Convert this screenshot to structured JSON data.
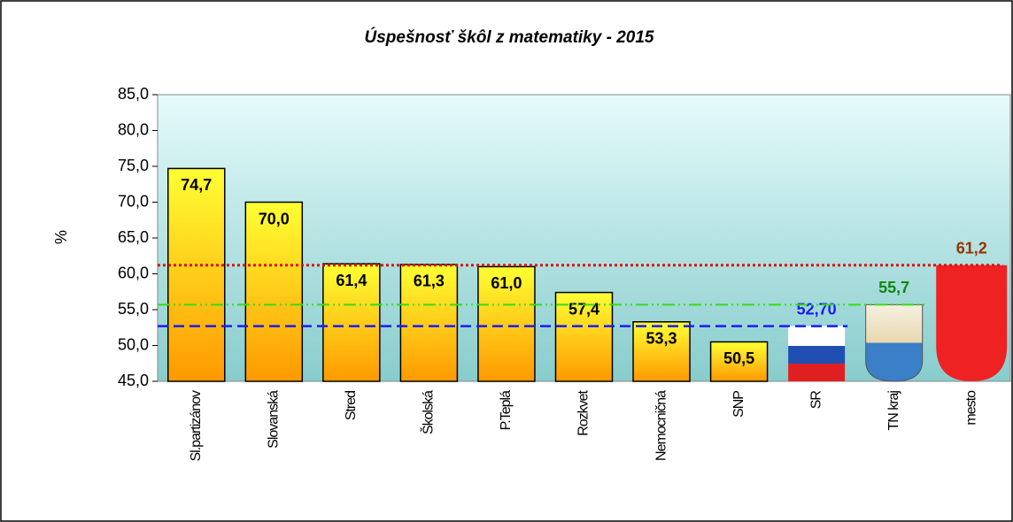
{
  "chart_data": {
    "type": "bar",
    "title": "Úspešnosť škôl z matematiky - 2015",
    "y_label": "%",
    "categories": [
      "Sl.partizánov",
      "Slovanská",
      "Stred",
      "Školská",
      "P.Teplá",
      "Rozkvet",
      "Nemocničná",
      "SNP",
      "SR",
      "TN kraj",
      "mesto"
    ],
    "values": [
      74.7,
      70.0,
      61.4,
      61.3,
      61.0,
      57.4,
      53.3,
      50.5,
      52.7,
      55.7,
      61.2
    ],
    "value_labels": [
      "74,7",
      "70,0",
      "61,4",
      "61,3",
      "61,0",
      "57,4",
      "53,3",
      "50,5",
      "52,70",
      "55,7",
      "61,2"
    ],
    "value_label_colors": [
      "#000000",
      "#000000",
      "#000000",
      "#000000",
      "#000000",
      "#000000",
      "#000000",
      "#000000",
      "#1a1aff",
      "#118811",
      "#993300"
    ],
    "ylim": [
      45,
      85
    ],
    "yticks": [
      {
        "value": 45,
        "label": "45,0"
      },
      {
        "value": 50,
        "label": "50,0"
      },
      {
        "value": 55,
        "label": "55,0"
      },
      {
        "value": 60,
        "label": "60,0"
      },
      {
        "value": 65,
        "label": "65,0"
      },
      {
        "value": 70,
        "label": "70,0"
      },
      {
        "value": 75,
        "label": "75,0"
      },
      {
        "value": 80,
        "label": "80,0"
      },
      {
        "value": 85,
        "label": "85,0"
      }
    ]
  }
}
